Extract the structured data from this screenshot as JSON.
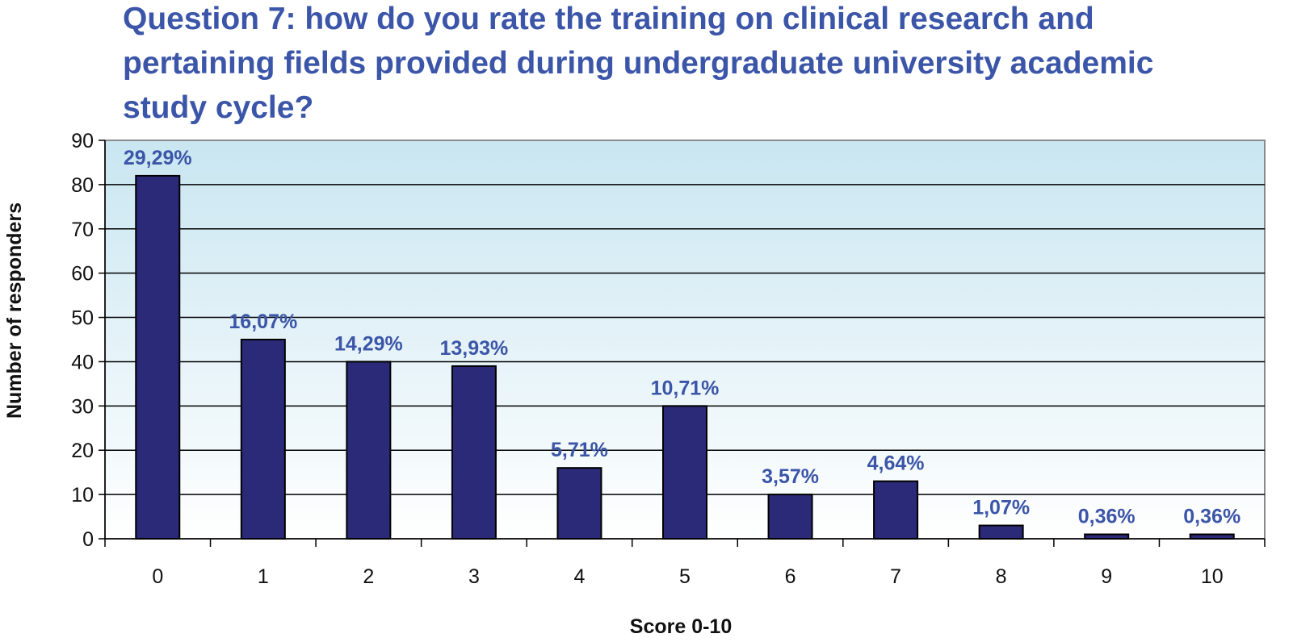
{
  "chart_data": {
    "type": "bar",
    "title_lines": [
      "Question 7: how do you rate the training on clinical research and",
      "pertaining fields provided during undergraduate university academic",
      "study cycle?"
    ],
    "xlabel": "Score 0-10",
    "ylabel": "Number of responders",
    "categories": [
      "0",
      "1",
      "2",
      "3",
      "4",
      "5",
      "6",
      "7",
      "8",
      "9",
      "10"
    ],
    "values": [
      82,
      45,
      40,
      39,
      16,
      30,
      10,
      13,
      3,
      1,
      1
    ],
    "data_labels": [
      "29,29%",
      "16,07%",
      "14,29%",
      "13,93%",
      "5,71%",
      "10,71%",
      "3,57%",
      "4,64%",
      "1,07%",
      "0,36%",
      "0,36%"
    ],
    "ylim": [
      0,
      90
    ],
    "yticks": [
      "0",
      "10",
      "20",
      "30",
      "40",
      "50",
      "60",
      "70",
      "80",
      "90"
    ],
    "grid": true,
    "bar_color": "#2a2a78",
    "label_color": "#3b55a8",
    "plot_gradient_top": "#c9e6f1",
    "plot_gradient_bottom": "#ffffff"
  }
}
